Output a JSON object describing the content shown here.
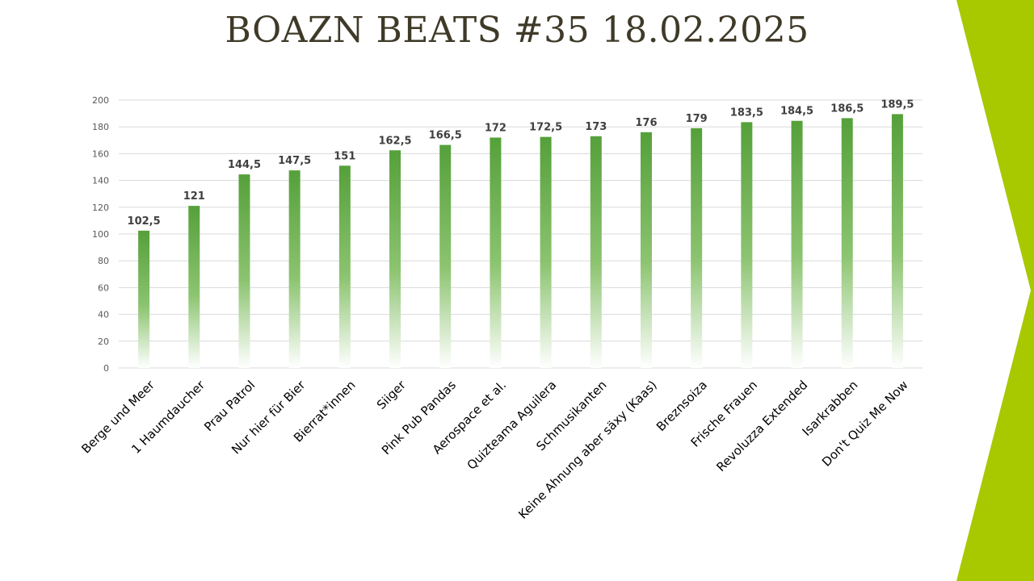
{
  "slide": {
    "title": "BOAZN BEATS #35 18.02.2025"
  },
  "colors": {
    "accent": "#a8c800",
    "bar_top": "#55a03a",
    "bar_bottom": "#ffffff",
    "gridline": "#d9d9d9",
    "title": "#3f3a28"
  },
  "chart_data": {
    "type": "bar",
    "title": "",
    "xlabel": "",
    "ylabel": "",
    "ylim": [
      0,
      200
    ],
    "yticks": [
      0,
      20,
      40,
      60,
      80,
      100,
      120,
      140,
      160,
      180,
      200
    ],
    "grid": true,
    "legend": "none",
    "categories": [
      "Berge und Meer",
      "1 Haumdaucher",
      "Prau Patrol",
      "Nur hier für Bier",
      "Bierrat*innen",
      "Siiger",
      "Pink Pub Pandas",
      "Aerospace et al.",
      "Quizteama Aguilera",
      "Schmusikanten",
      "Keine Ahnung aber säxy (Kaas)",
      "Breznsoiza",
      "Frische Frauen",
      "Revoluzza Extended",
      "Isarkrabben",
      "Don't Quiz Me Now"
    ],
    "values": [
      102.5,
      121,
      144.5,
      147.5,
      151,
      162.5,
      166.5,
      172,
      172.5,
      173,
      176,
      179,
      183.5,
      184.5,
      186.5,
      189.5
    ],
    "data_labels": [
      "102,5",
      "121",
      "144,5",
      "147,5",
      "151",
      "162,5",
      "166,5",
      "172",
      "172,5",
      "173",
      "176",
      "179",
      "183,5",
      "184,5",
      "186,5",
      "189,5"
    ]
  }
}
